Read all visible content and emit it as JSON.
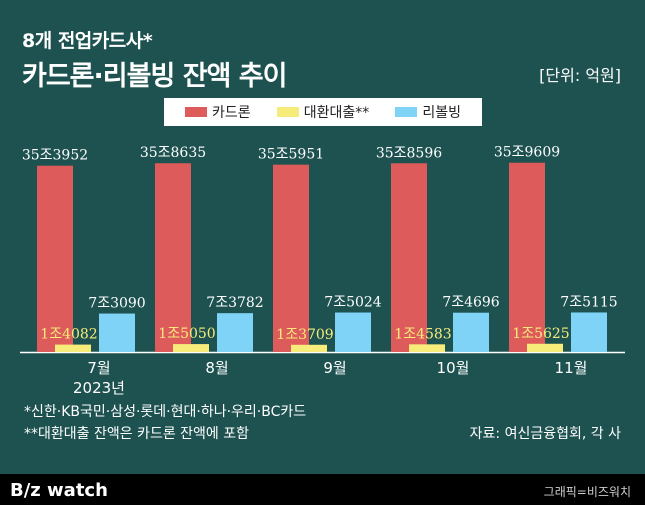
{
  "header": {
    "subtitle": "8개 전업카드사*",
    "title": "카드론·리볼빙 잔액 추이",
    "unit": "[단위: 억원]"
  },
  "chart_data": {
    "type": "bar",
    "categories": [
      "7월",
      "8월",
      "9월",
      "10월",
      "11월"
    ],
    "category_sublabels": [
      "2023년",
      "",
      "",
      "",
      ""
    ],
    "series": [
      {
        "name": "카드론",
        "color": "#dd5b5b",
        "values": [
          353952,
          358635,
          355951,
          358596,
          359609
        ],
        "labels": [
          "35조3952",
          "35조8635",
          "35조5951",
          "35조8596",
          "35조9609"
        ]
      },
      {
        "name": "대환대출**",
        "color": "#f7ec7a",
        "values": [
          14082,
          15050,
          13709,
          14583,
          15625
        ],
        "labels": [
          "1조4082",
          "1조5050",
          "1조3709",
          "1조4583",
          "1조5625"
        ]
      },
      {
        "name": "리볼빙",
        "color": "#7ed3f7",
        "values": [
          73090,
          73782,
          75024,
          74696,
          75115
        ],
        "labels": [
          "7조3090",
          "7조3782",
          "7조5024",
          "7조4696",
          "7조5115"
        ]
      }
    ],
    "ylim": [
      0,
      380000
    ],
    "grid": false,
    "legend_position": "top-center"
  },
  "footnotes": {
    "note1": "*신한·KB국민·삼성·롯데·현대·하나·우리·BC카드",
    "note2": "**대환대출 잔액은 카드론 잔액에 포함",
    "source": "자료: 여신금융협회, 각 사"
  },
  "footer": {
    "logo": "B/z watch",
    "credit": "그래픽=비즈워치"
  }
}
